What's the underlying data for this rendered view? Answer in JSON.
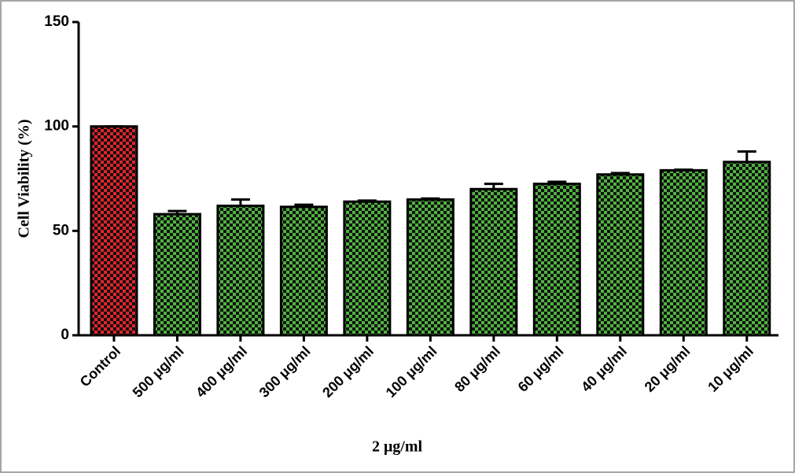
{
  "chart_data": {
    "type": "bar",
    "y_label": "Cell Viability (%)",
    "x_label": "2 μg/ml",
    "categories": [
      "Control",
      "500 μg/ml",
      "400 μg/ml",
      "300 μg/ml",
      "200 μg/ml",
      "100 μg/ml",
      "80 μg/ml",
      "60 μg/ml",
      "40 μg/ml",
      "20 μg/ml",
      "10 μg/ml"
    ],
    "values": [
      100,
      58,
      62,
      61.5,
      64,
      65,
      70,
      72.5,
      77,
      79,
      83
    ],
    "errors": [
      0,
      1.5,
      3,
      1,
      0.5,
      0.5,
      2.5,
      1,
      0.7,
      0.3,
      5
    ],
    "colors": [
      "#e3232c",
      "#4fb33f",
      "#4fb33f",
      "#4fb33f",
      "#4fb33f",
      "#4fb33f",
      "#4fb33f",
      "#4fb33f",
      "#4fb33f",
      "#4fb33f",
      "#4fb33f"
    ],
    "ylim": [
      0,
      150
    ],
    "yticks": [
      0,
      50,
      100,
      150
    ]
  }
}
